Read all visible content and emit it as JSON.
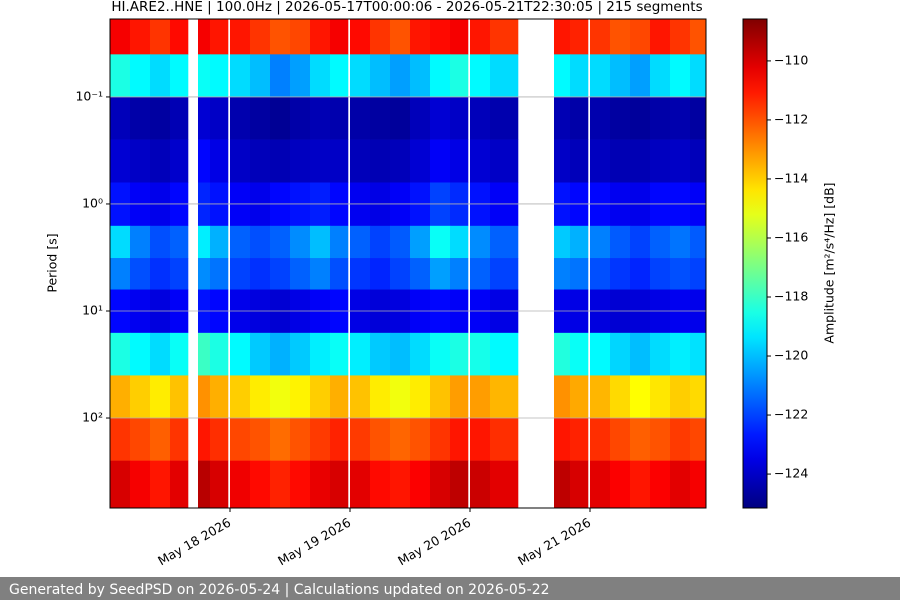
{
  "chart_data": {
    "type": "heatmap",
    "title": "HI.ARE2..HNE | 100.0Hz | 2026-05-17T00:00:06 - 2026-05-21T22:30:05 | 215 segments",
    "ylabel": "Period [s]",
    "colorbar_label": "Amplitude [m²/s⁴/Hz] [dB]",
    "colormap": "jet",
    "grid": true,
    "ylog": true,
    "yinvert": true,
    "xlim": [
      "2026-05-17T00:00",
      "2026-05-21T23:12"
    ],
    "xticks": [
      {
        "value": "2026-05-18T00:00",
        "label": "May 18 2026"
      },
      {
        "value": "2026-05-19T00:00",
        "label": "May 19 2026"
      },
      {
        "value": "2026-05-20T00:00",
        "label": "May 20 2026"
      },
      {
        "value": "2026-05-21T00:00",
        "label": "May 21 2026"
      }
    ],
    "ylim": [
      0.0187,
      693
    ],
    "yticks": [
      {
        "value": 0.1,
        "label": "10⁻¹"
      },
      {
        "value": 1,
        "label": "10⁰"
      },
      {
        "value": 10,
        "label": "10¹"
      },
      {
        "value": 100,
        "label": "10²"
      }
    ],
    "clim": [
      -125.15,
      -108.58
    ],
    "cticks": [
      {
        "value": -124,
        "label": "−124"
      },
      {
        "value": -122,
        "label": "−122"
      },
      {
        "value": -120,
        "label": "−120"
      },
      {
        "value": -118,
        "label": "−118"
      },
      {
        "value": -116,
        "label": "−116"
      },
      {
        "value": -114,
        "label": "−114"
      },
      {
        "value": -112,
        "label": "−112"
      },
      {
        "value": -110,
        "label": "−110"
      }
    ],
    "x": [
      "2026-05-17T00:00",
      "2026-05-17T04:00",
      "2026-05-17T08:00",
      "2026-05-17T12:00",
      "2026-05-17T15:36",
      "2026-05-17T17:36",
      "2026-05-17T20:00",
      "2026-05-17T23:36",
      "2026-05-18T00:00",
      "2026-05-18T04:00",
      "2026-05-18T08:00",
      "2026-05-18T12:00",
      "2026-05-18T16:00",
      "2026-05-18T20:00",
      "2026-05-18T23:36",
      "2026-05-19T00:00",
      "2026-05-19T04:00",
      "2026-05-19T08:00",
      "2026-05-19T12:00",
      "2026-05-19T16:00",
      "2026-05-19T20:00",
      "2026-05-19T23:36",
      "2026-05-20T00:00",
      "2026-05-20T04:00",
      "2026-05-20T09:36",
      "2026-05-20T16:48",
      "2026-05-20T20:00",
      "2026-05-20T23:36",
      "2026-05-21T00:00",
      "2026-05-21T04:00",
      "2026-05-21T08:00",
      "2026-05-21T12:00",
      "2026-05-21T16:00",
      "2026-05-21T20:00",
      "2026-05-21T23:12"
    ],
    "y": [
      0.0187,
      0.04,
      0.1,
      0.25,
      0.63,
      1.6,
      3.2,
      6.3,
      16,
      40,
      100,
      250,
      693
    ],
    "z": [
      [
        -110.5,
        -111,
        -111.5,
        -110.8,
        null,
        -110.5,
        -111,
        null,
        -111,
        -111.5,
        -112,
        -111.8,
        -111,
        -110.5,
        null,
        -110.8,
        -111.5,
        -112,
        -111,
        -110.8,
        -110.5,
        null,
        -111,
        -111.5,
        null,
        -111,
        -111.2,
        null,
        -111.5,
        -112,
        -111.8,
        -111,
        -111.5,
        -112
      ],
      [
        -118.5,
        -119,
        -119.5,
        -119,
        null,
        -118.8,
        -119,
        null,
        -119.5,
        -120,
        -121,
        -120.5,
        -119.5,
        -119,
        null,
        -119.5,
        -120,
        -120.5,
        -120,
        -119,
        -118.5,
        null,
        -119,
        -119.5,
        null,
        -119,
        -119.5,
        null,
        -119.5,
        -120,
        -120.5,
        -119.5,
        -119,
        -119.5
      ],
      [
        -124.2,
        -124.5,
        -124.6,
        -124.3,
        null,
        -123.8,
        -124,
        null,
        -124.4,
        -124.6,
        -124.8,
        -124.5,
        -124.3,
        -124.4,
        null,
        -124.5,
        -124.6,
        -124.7,
        -124.2,
        -123.8,
        -124,
        null,
        -124.2,
        -124.4,
        null,
        -124.3,
        -124.5,
        null,
        -124.4,
        -124.6,
        -124.7,
        -124.5,
        -124.4,
        -124.6
      ],
      [
        -123.8,
        -124,
        -124.2,
        -123.9,
        null,
        -123,
        -123.5,
        null,
        -124,
        -124.2,
        -124.3,
        -124.1,
        -124,
        -124,
        null,
        -124.2,
        -124.3,
        -124.2,
        -123.8,
        -123.2,
        -123.5,
        null,
        -123.8,
        -124,
        null,
        -124,
        -124.2,
        null,
        -124.1,
        -124.3,
        -124.3,
        -124.1,
        -124,
        -124.2
      ],
      [
        -122.8,
        -123.2,
        -123.4,
        -123,
        null,
        -122.5,
        -122.8,
        null,
        -123.2,
        -123.4,
        -123,
        -122.8,
        -122.6,
        -123,
        null,
        -123.3,
        -123.5,
        -123.2,
        -122.8,
        -122,
        -122.4,
        null,
        -122.8,
        -123.2,
        null,
        -122.8,
        -123,
        null,
        -123,
        -123.3,
        -123.4,
        -123,
        -123,
        -123.2
      ],
      [
        -119.5,
        -121,
        -121.8,
        -121.5,
        null,
        -119.2,
        -120.2,
        null,
        -121.5,
        -121.8,
        -121.5,
        -120.8,
        -120,
        -121,
        null,
        -121.5,
        -122,
        -121.6,
        -120.5,
        -118.8,
        -119.5,
        null,
        -120.8,
        -121.5,
        null,
        -119.8,
        -120.2,
        null,
        -121,
        -121.6,
        -122,
        -121.5,
        -121.2,
        -121.6
      ],
      [
        -121,
        -121.8,
        -122.3,
        -122,
        null,
        -120.8,
        -121.2,
        null,
        -122,
        -122.3,
        -122,
        -121.5,
        -121,
        -121.8,
        null,
        -122.2,
        -122.5,
        -122,
        -121.5,
        -120.5,
        -121,
        null,
        -121.5,
        -122,
        null,
        -121,
        -121.2,
        null,
        -121.8,
        -122.2,
        -122.5,
        -122,
        -121.8,
        -122
      ],
      [
        -123,
        -123.3,
        -123.6,
        -123.2,
        null,
        -122.8,
        -123,
        null,
        -123.4,
        -123.6,
        -123.8,
        -123.5,
        -123.2,
        -123,
        null,
        -123.5,
        -123.7,
        -123.6,
        -123.2,
        -123,
        -123.2,
        null,
        -123.2,
        -123.5,
        null,
        -123.4,
        -123.5,
        null,
        -123.6,
        -123.8,
        -123.7,
        -123.5,
        -123.3,
        -123.4
      ],
      [
        -118.5,
        -119,
        -119.5,
        -118.8,
        null,
        -118,
        -118.5,
        null,
        -119,
        -119.8,
        -120.2,
        -119.8,
        -119.2,
        -118.8,
        null,
        -119.2,
        -119.8,
        -120,
        -119.5,
        -118.8,
        -118.5,
        null,
        -118.6,
        -119,
        null,
        -118.4,
        -118.8,
        null,
        -119,
        -119.6,
        -120,
        -119.5,
        -119.2,
        -119.4
      ],
      [
        -113.5,
        -114,
        -114.5,
        -113.8,
        null,
        -113,
        -113.5,
        null,
        -114,
        -114.5,
        -115,
        -114.6,
        -114,
        -113.5,
        null,
        -113.8,
        -114.5,
        -115,
        -114.5,
        -113.8,
        -113.2,
        null,
        -113.2,
        -113.6,
        null,
        -113,
        -113.4,
        null,
        -113.6,
        -114.2,
        -114.8,
        -114.4,
        -114,
        -114.2
      ],
      [
        -111.5,
        -111.8,
        -112.2,
        -111.5,
        null,
        -111,
        -111.4,
        null,
        -111.8,
        -112,
        -112.4,
        -112,
        -111.6,
        -111.2,
        null,
        -111.6,
        -112,
        -112.3,
        -112,
        -111.5,
        -111,
        null,
        -111,
        -111.4,
        null,
        -111,
        -111.2,
        null,
        -111.4,
        -111.8,
        -112.2,
        -112,
        -111.6,
        -111.8
      ],
      [
        -110,
        -110.5,
        -111,
        -110.2,
        null,
        -109.5,
        -110,
        null,
        -110.4,
        -110.8,
        -111.2,
        -110.8,
        -110.3,
        -110,
        null,
        -110.2,
        -110.8,
        -111,
        -110.6,
        -110,
        -109.6,
        null,
        -109.8,
        -110.2,
        null,
        -109.6,
        -110,
        null,
        -110.2,
        -110.6,
        -111,
        -110.6,
        -110.2,
        -110.5
      ]
    ]
  },
  "footer": "Generated by SeedPSD on 2026-05-24 | Calculations updated on 2026-05-22"
}
